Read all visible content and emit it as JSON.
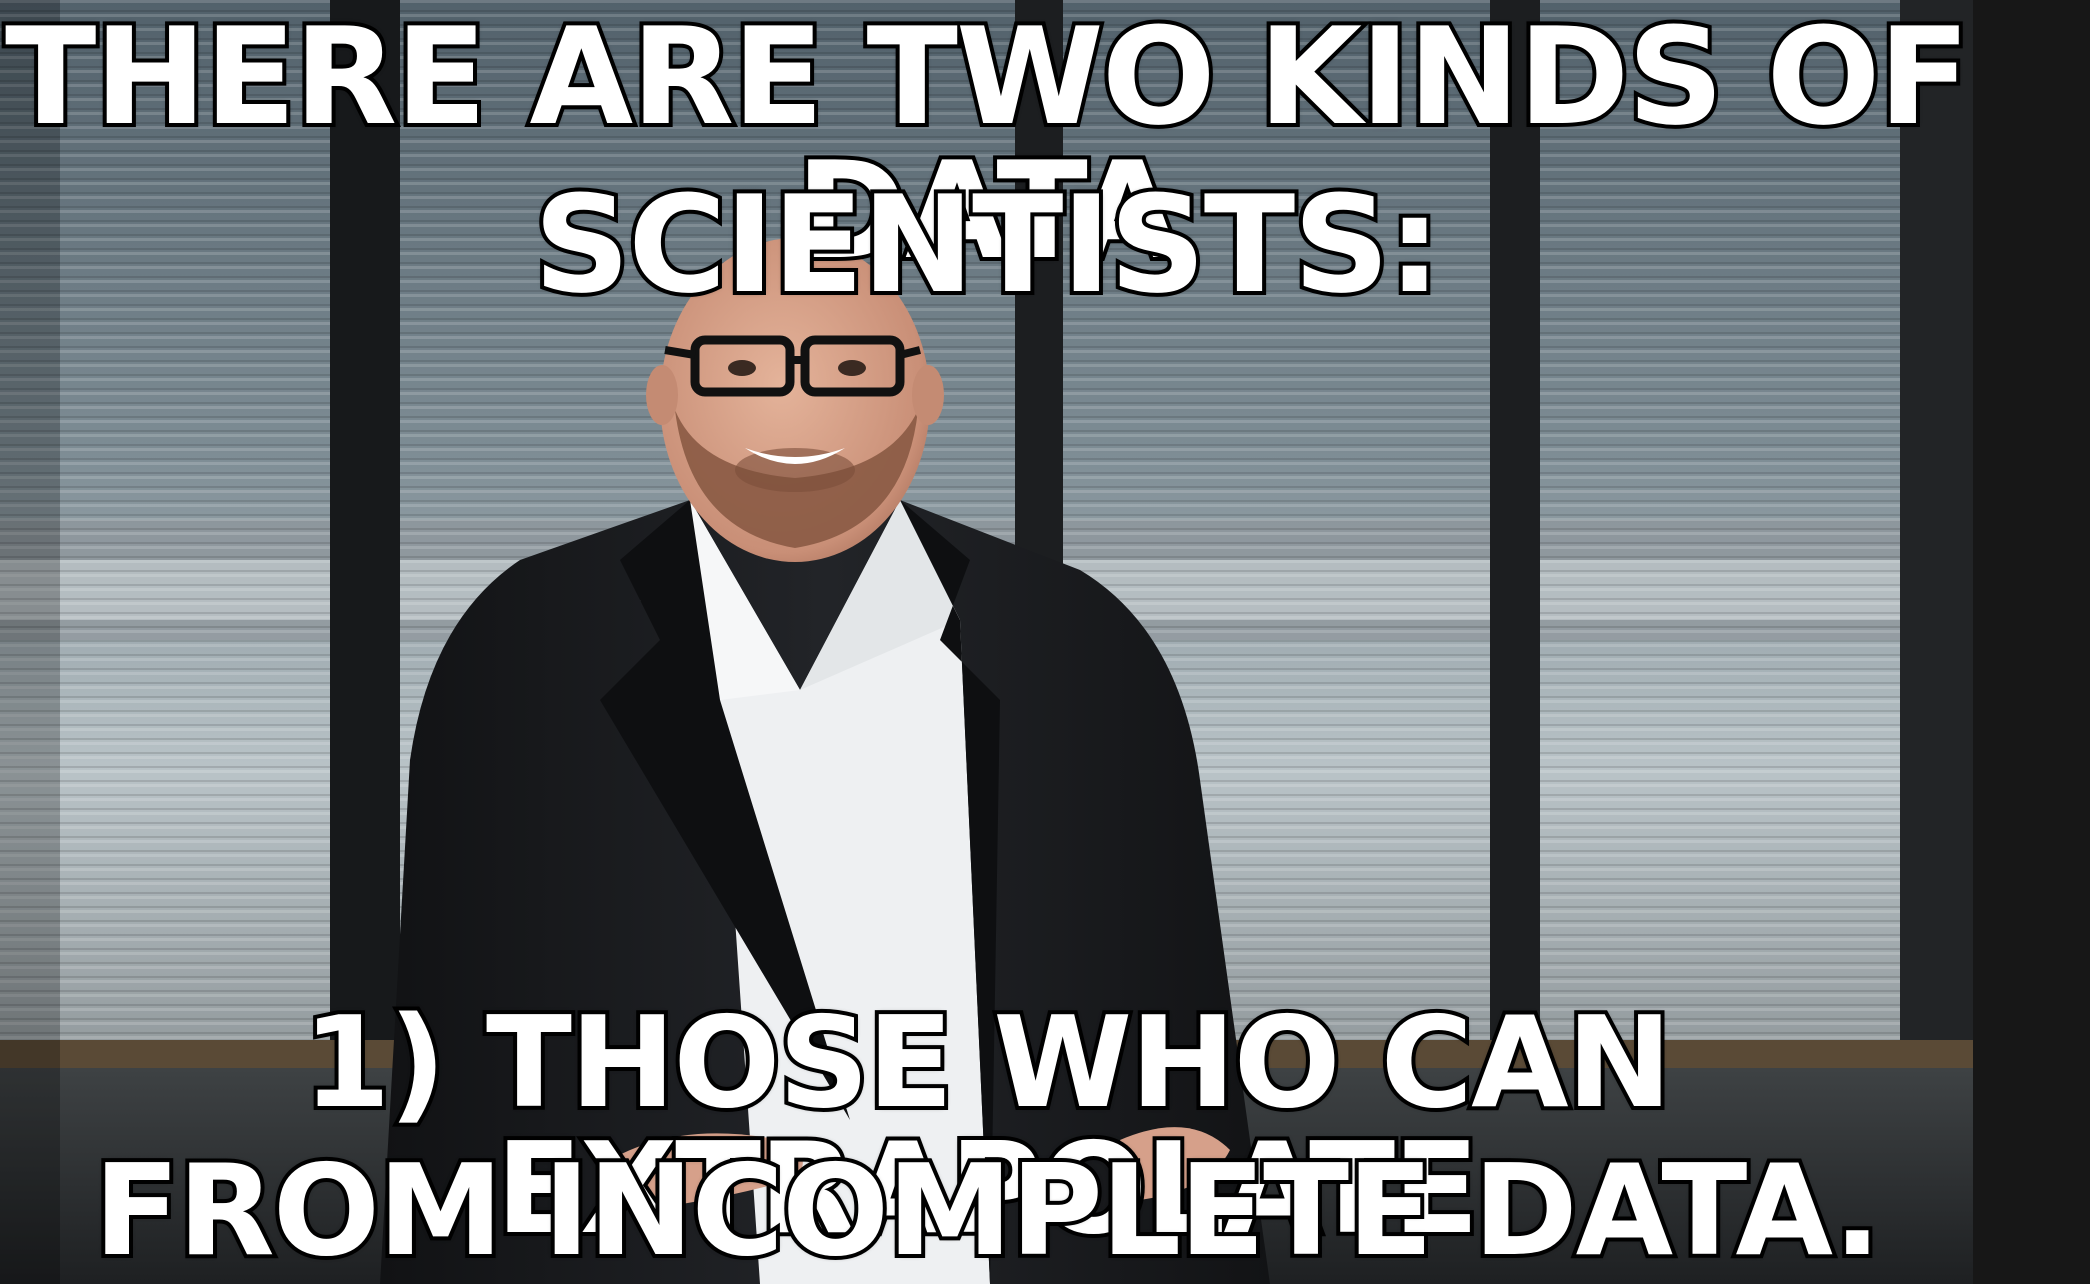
{
  "meme": {
    "top_text_line1": "THERE ARE TWO KINDS OF DATA",
    "top_text_line2": "SCIENTISTS:",
    "bottom_text_line1": "1) THOSE WHO CAN EXTRAPOLATE",
    "bottom_text_line2": "FROM INCOMPLETE DATA."
  },
  "colors": {
    "caption_fill": "#ffffff",
    "caption_stroke": "#000000",
    "background_strip": "#171717",
    "suit": "#1b1d20",
    "shirt": "#f1f2f3",
    "skin": "#d8a38c",
    "beard": "#8c5a43"
  }
}
